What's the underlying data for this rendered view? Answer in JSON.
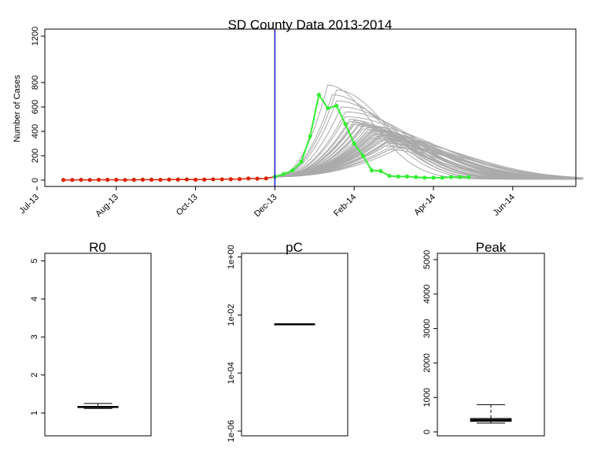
{
  "chart_data": [
    {
      "type": "line",
      "title": "SD County Data 2013-2014",
      "ylabel": "Number of Cases",
      "xlabel": "",
      "y_ticks": [
        0,
        200,
        400,
        600,
        800,
        1200
      ],
      "ylim": [
        -50,
        1200
      ],
      "x_tick_labels": [
        "Jul-13",
        "Aug-13",
        "Oct-13",
        "Dec-13",
        "Feb-14",
        "Apr-14",
        "Jun-14"
      ],
      "x_tick_weeks": [
        0,
        9,
        18,
        27,
        36,
        45,
        54
      ],
      "xlim": [
        0,
        63
      ],
      "vertical_line_week": 27,
      "colors": {
        "observed": "#dd2200",
        "forecast_obs": "#33ee33",
        "simulation": "#aaaaaa",
        "vline": "#2222cc"
      },
      "observed": {
        "weeks": [
          3,
          4,
          5,
          6,
          7,
          8,
          9,
          10,
          11,
          12,
          13,
          14,
          15,
          16,
          17,
          18,
          19,
          20,
          21,
          22,
          23,
          24,
          25,
          26,
          27
        ],
        "values": [
          2,
          2,
          3,
          2,
          3,
          3,
          3,
          2,
          3,
          4,
          4,
          3,
          5,
          5,
          6,
          4,
          5,
          7,
          7,
          8,
          9,
          14,
          12,
          14,
          28
        ]
      },
      "validation": {
        "weeks": [
          27,
          28,
          29,
          30,
          31,
          32,
          33,
          34,
          35,
          36,
          37,
          38,
          39,
          40,
          41,
          42,
          43,
          44,
          45,
          46,
          47,
          48,
          49
        ],
        "values": [
          28,
          50,
          80,
          150,
          360,
          700,
          590,
          610,
          460,
          300,
          200,
          80,
          75,
          35,
          30,
          30,
          25,
          20,
          20,
          20,
          25,
          25,
          25
        ]
      },
      "simulations": {
        "start_week": 27,
        "start_value": 28,
        "end_week": 62,
        "peak_values": [
          780,
          740,
          700,
          650,
          600,
          560,
          520,
          500,
          490,
          480,
          470,
          460,
          455,
          450,
          445,
          440,
          430,
          420,
          410,
          405,
          400,
          395,
          390,
          385,
          380,
          375,
          370,
          365,
          360,
          355,
          350,
          345,
          340,
          335,
          330,
          325,
          320,
          310,
          300,
          290,
          280,
          270,
          260,
          250
        ],
        "peak_weeks": [
          33,
          34,
          33.5,
          34,
          34.5,
          35,
          35,
          35.5,
          36,
          35.5,
          36,
          36.5,
          36,
          37,
          36.5,
          37,
          37.5,
          37,
          38,
          37.5,
          38,
          38.5,
          37.5,
          38,
          38.5,
          39,
          38,
          39,
          38.5,
          39,
          39.5,
          38,
          39,
          39.5,
          40,
          39,
          40,
          39.5,
          40,
          40.5,
          39.5,
          40.5,
          41,
          40
        ]
      }
    },
    {
      "type": "box",
      "title": "R0",
      "y_ticks": [
        1,
        2,
        3,
        4,
        5
      ],
      "ylim": [
        0.4,
        5.2
      ],
      "stats": {
        "min": 1.12,
        "q1": 1.15,
        "median": 1.16,
        "q3": 1.17,
        "max": 1.25
      }
    },
    {
      "type": "box",
      "title": "pC",
      "log_scale": true,
      "y_tick_labels": [
        "1e-06",
        "1e-04",
        "1e-02",
        "1e+00"
      ],
      "y_tick_exponents": [
        -6,
        -4,
        -2,
        0
      ],
      "ylim_exponent": [
        -6,
        0.1
      ],
      "stats_exponent": {
        "min": -2.32,
        "q1": -2.32,
        "median": -2.32,
        "q3": -2.32,
        "max": -2.32
      }
    },
    {
      "type": "box",
      "title": "Peak",
      "y_ticks": [
        0,
        1000,
        2000,
        3000,
        4000,
        5000
      ],
      "ylim": [
        -100,
        5200
      ],
      "stats": {
        "min": 255,
        "q1": 305,
        "median": 345,
        "q3": 390,
        "max": 790
      }
    }
  ]
}
